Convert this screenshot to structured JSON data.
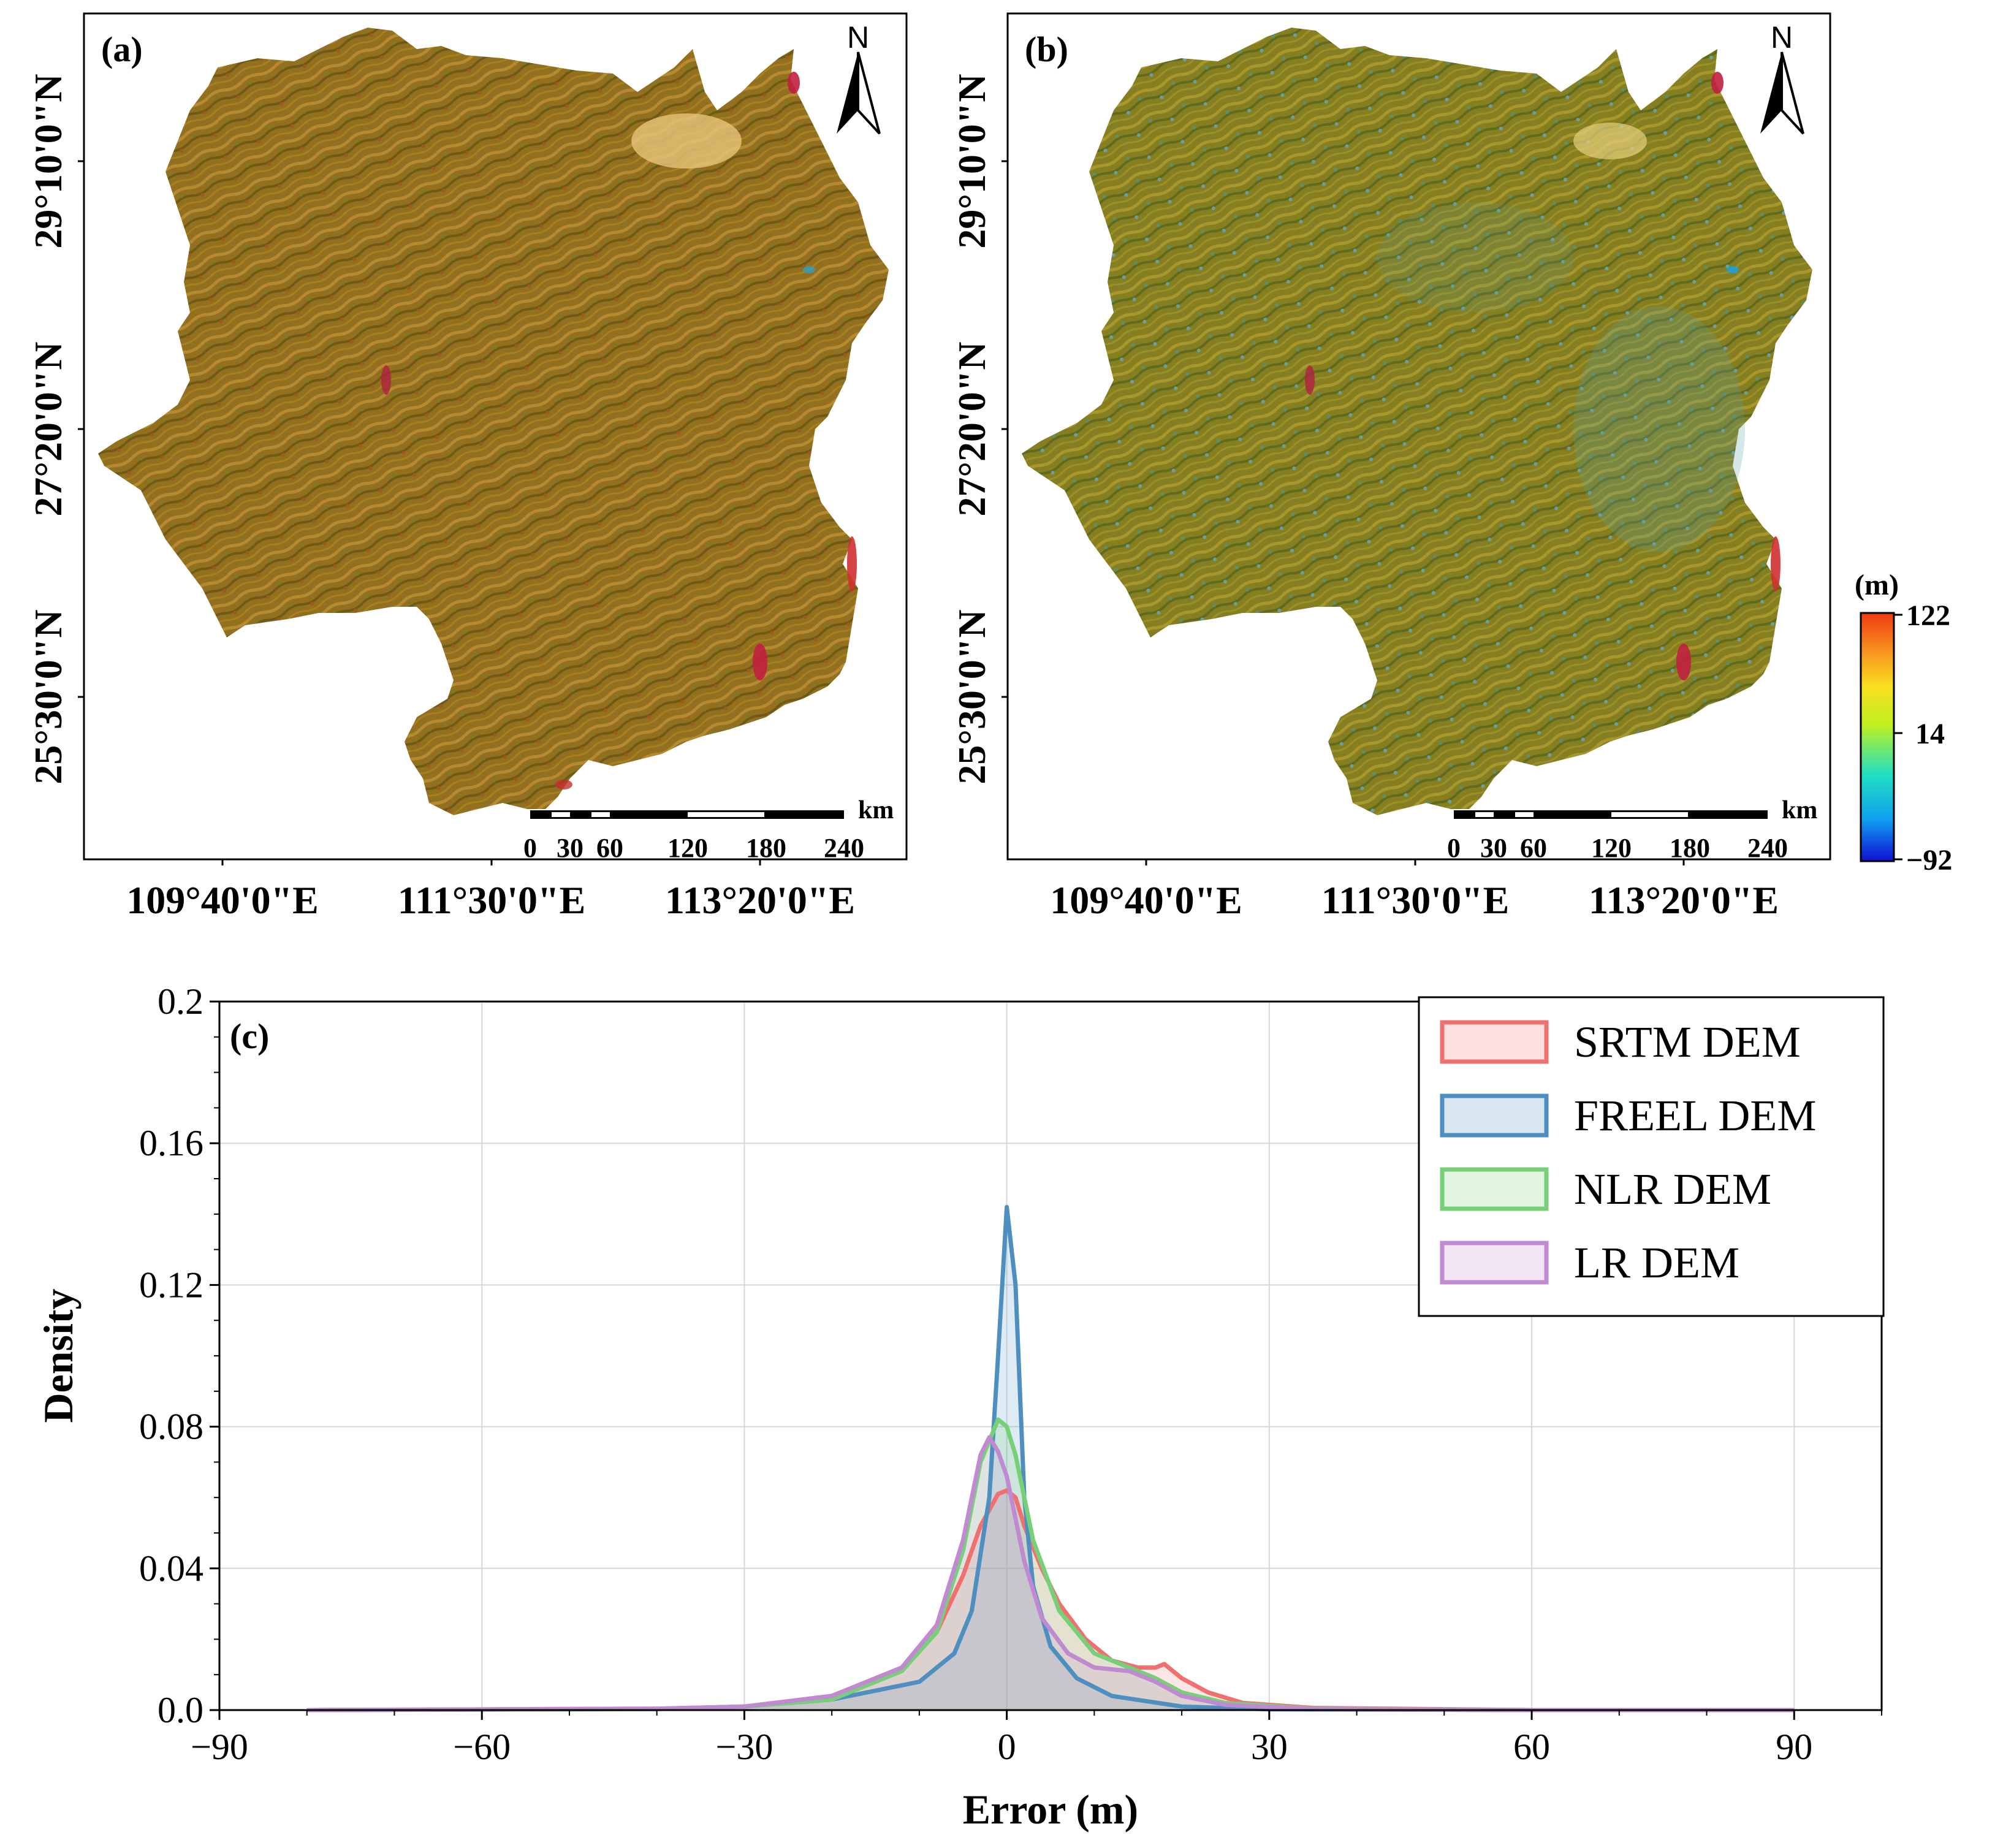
{
  "maps": [
    {
      "label": "(a)",
      "north": "N",
      "lat_ticks": [
        "29°10'0\"N",
        "27°20'0\"N",
        "25°30'0\"N"
      ],
      "lon_ticks": [
        "109°40'0\"E",
        "111°30'0\"E",
        "113°20'0\"E"
      ],
      "scale_unit": "km",
      "scale_ticks": [
        "0",
        "30",
        "60",
        "120",
        "180",
        "240"
      ]
    },
    {
      "label": "(b)",
      "north": "N",
      "lat_ticks": [
        "29°10'0\"N",
        "27°20'0\"N",
        "25°30'0\"N"
      ],
      "lon_ticks": [
        "109°40'0\"E",
        "111°30'0\"E",
        "113°20'0\"E"
      ],
      "scale_unit": "km",
      "scale_ticks": [
        "0",
        "30",
        "60",
        "120",
        "180",
        "240"
      ]
    }
  ],
  "colorbar": {
    "unit": "(m)",
    "max_label": "122",
    "mid_label": "14",
    "min_label": "−92",
    "max": 122,
    "mid": 14,
    "min": -92,
    "colors": [
      "#1010d0",
      "#10a0f0",
      "#20e0c0",
      "#c0f020",
      "#f8e020",
      "#f89020",
      "#f03a10"
    ]
  },
  "map_colors": {
    "a": [
      "#8a6a18",
      "#a0701e",
      "#7c7a1e",
      "#b8862a"
    ],
    "b": [
      "#7a7a1c",
      "#8c8a24",
      "#6e8a34",
      "#a8922a"
    ]
  },
  "chart_data": {
    "type": "area",
    "label": "(c)",
    "xlabel": "Error (m)",
    "ylabel": "Density",
    "xlim": [
      -90,
      100
    ],
    "ylim": [
      0,
      0.2
    ],
    "xticks": [
      -90,
      -60,
      -30,
      0,
      30,
      60,
      90
    ],
    "xtick_labels": [
      "−90",
      "−60",
      "−30",
      "0",
      "30",
      "60",
      "90"
    ],
    "yticks": [
      0,
      0.04,
      0.08,
      0.12,
      0.16,
      0.2
    ],
    "ytick_labels": [
      "0.0",
      "0.04",
      "0.08",
      "0.12",
      "0.16",
      "0.2"
    ],
    "grid": true,
    "legend_position": "top-right",
    "series": [
      {
        "name": "SRTM DEM",
        "color": "#f07070",
        "points": [
          [
            -80,
            0
          ],
          [
            -40,
            0.0004
          ],
          [
            -30,
            0.001
          ],
          [
            -20,
            0.004
          ],
          [
            -12,
            0.012
          ],
          [
            -8,
            0.022
          ],
          [
            -5,
            0.038
          ],
          [
            -3,
            0.052
          ],
          [
            -1,
            0.061
          ],
          [
            0,
            0.062
          ],
          [
            1,
            0.06
          ],
          [
            2,
            0.052
          ],
          [
            4,
            0.04
          ],
          [
            6,
            0.03
          ],
          [
            9,
            0.02
          ],
          [
            12,
            0.014
          ],
          [
            15,
            0.012
          ],
          [
            17,
            0.012
          ],
          [
            18,
            0.013
          ],
          [
            20,
            0.009
          ],
          [
            23,
            0.005
          ],
          [
            27,
            0.002
          ],
          [
            35,
            0.0006
          ],
          [
            60,
            0
          ],
          [
            90,
            0
          ]
        ]
      },
      {
        "name": "FREEL DEM",
        "color": "#4e8fc0",
        "points": [
          [
            -80,
            0
          ],
          [
            -40,
            0.0003
          ],
          [
            -30,
            0.001
          ],
          [
            -20,
            0.003
          ],
          [
            -10,
            0.008
          ],
          [
            -6,
            0.016
          ],
          [
            -4,
            0.028
          ],
          [
            -2,
            0.06
          ],
          [
            -1,
            0.1
          ],
          [
            0,
            0.142
          ],
          [
            1,
            0.12
          ],
          [
            2,
            0.06
          ],
          [
            3,
            0.035
          ],
          [
            5,
            0.018
          ],
          [
            8,
            0.009
          ],
          [
            12,
            0.004
          ],
          [
            20,
            0.001
          ],
          [
            30,
            0.0002
          ],
          [
            60,
            0
          ],
          [
            90,
            0
          ]
        ]
      },
      {
        "name": "NLR DEM",
        "color": "#77d077",
        "points": [
          [
            -80,
            0
          ],
          [
            -40,
            0.0003
          ],
          [
            -30,
            0.001
          ],
          [
            -20,
            0.003
          ],
          [
            -12,
            0.011
          ],
          [
            -8,
            0.022
          ],
          [
            -5,
            0.045
          ],
          [
            -3,
            0.07
          ],
          [
            -1,
            0.082
          ],
          [
            0,
            0.08
          ],
          [
            1,
            0.072
          ],
          [
            3,
            0.048
          ],
          [
            6,
            0.028
          ],
          [
            10,
            0.016
          ],
          [
            14,
            0.012
          ],
          [
            17,
            0.009
          ],
          [
            20,
            0.005
          ],
          [
            25,
            0.002
          ],
          [
            35,
            0.0004
          ],
          [
            60,
            0
          ],
          [
            90,
            0
          ]
        ]
      },
      {
        "name": "LR DEM",
        "color": "#c08ad0",
        "points": [
          [
            -80,
            0
          ],
          [
            -40,
            0.0004
          ],
          [
            -30,
            0.001
          ],
          [
            -20,
            0.004
          ],
          [
            -12,
            0.012
          ],
          [
            -8,
            0.024
          ],
          [
            -5,
            0.048
          ],
          [
            -3,
            0.072
          ],
          [
            -2,
            0.077
          ],
          [
            -1,
            0.073
          ],
          [
            0,
            0.066
          ],
          [
            2,
            0.042
          ],
          [
            4,
            0.026
          ],
          [
            7,
            0.016
          ],
          [
            10,
            0.012
          ],
          [
            14,
            0.011
          ],
          [
            17,
            0.008
          ],
          [
            20,
            0.004
          ],
          [
            25,
            0.0015
          ],
          [
            35,
            0.0003
          ],
          [
            60,
            0
          ],
          [
            90,
            0
          ]
        ]
      }
    ]
  }
}
